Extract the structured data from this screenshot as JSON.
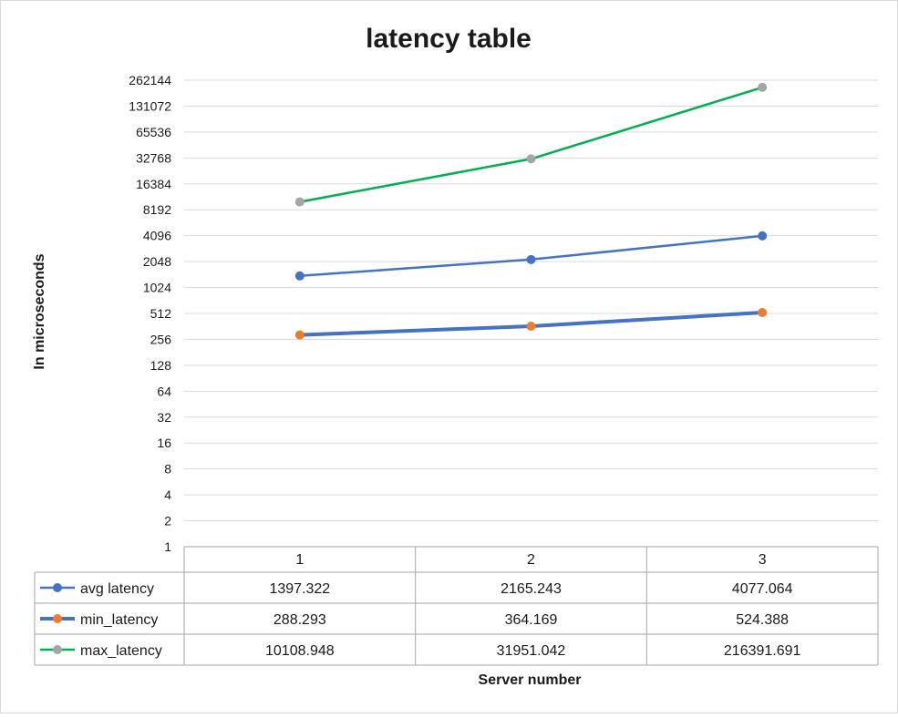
{
  "chart_data": {
    "type": "line",
    "title": "latency table",
    "xlabel": "Server number",
    "ylabel": "In microseconds",
    "y_scale": "log2",
    "ylim": [
      1,
      262144
    ],
    "y_ticks": [
      1,
      2,
      4,
      8,
      16,
      32,
      64,
      128,
      256,
      512,
      1024,
      2048,
      4096,
      8192,
      16384,
      32768,
      65536,
      131072,
      262144
    ],
    "grid": true,
    "categories": [
      "1",
      "2",
      "3"
    ],
    "series": [
      {
        "name": "avg latency",
        "color": "#4472c4",
        "marker_color": "#4472c4",
        "values": [
          1397.322,
          2165.243,
          4077.064
        ],
        "display": [
          "1397.322",
          "2165.243",
          "4077.064"
        ]
      },
      {
        "name": "min_latency",
        "color": "#4472c4",
        "marker_color": "#ed7d31",
        "values": [
          288.293,
          364.169,
          524.388
        ],
        "display": [
          "288.293",
          "364.169",
          "524.388"
        ]
      },
      {
        "name": "max_latency",
        "color": "#00b050",
        "marker_color": "#a5a5a5",
        "values": [
          10108.948,
          31951.042,
          216391.691
        ],
        "display": [
          "10108.948",
          "31951.042",
          "216391.691"
        ]
      }
    ]
  }
}
